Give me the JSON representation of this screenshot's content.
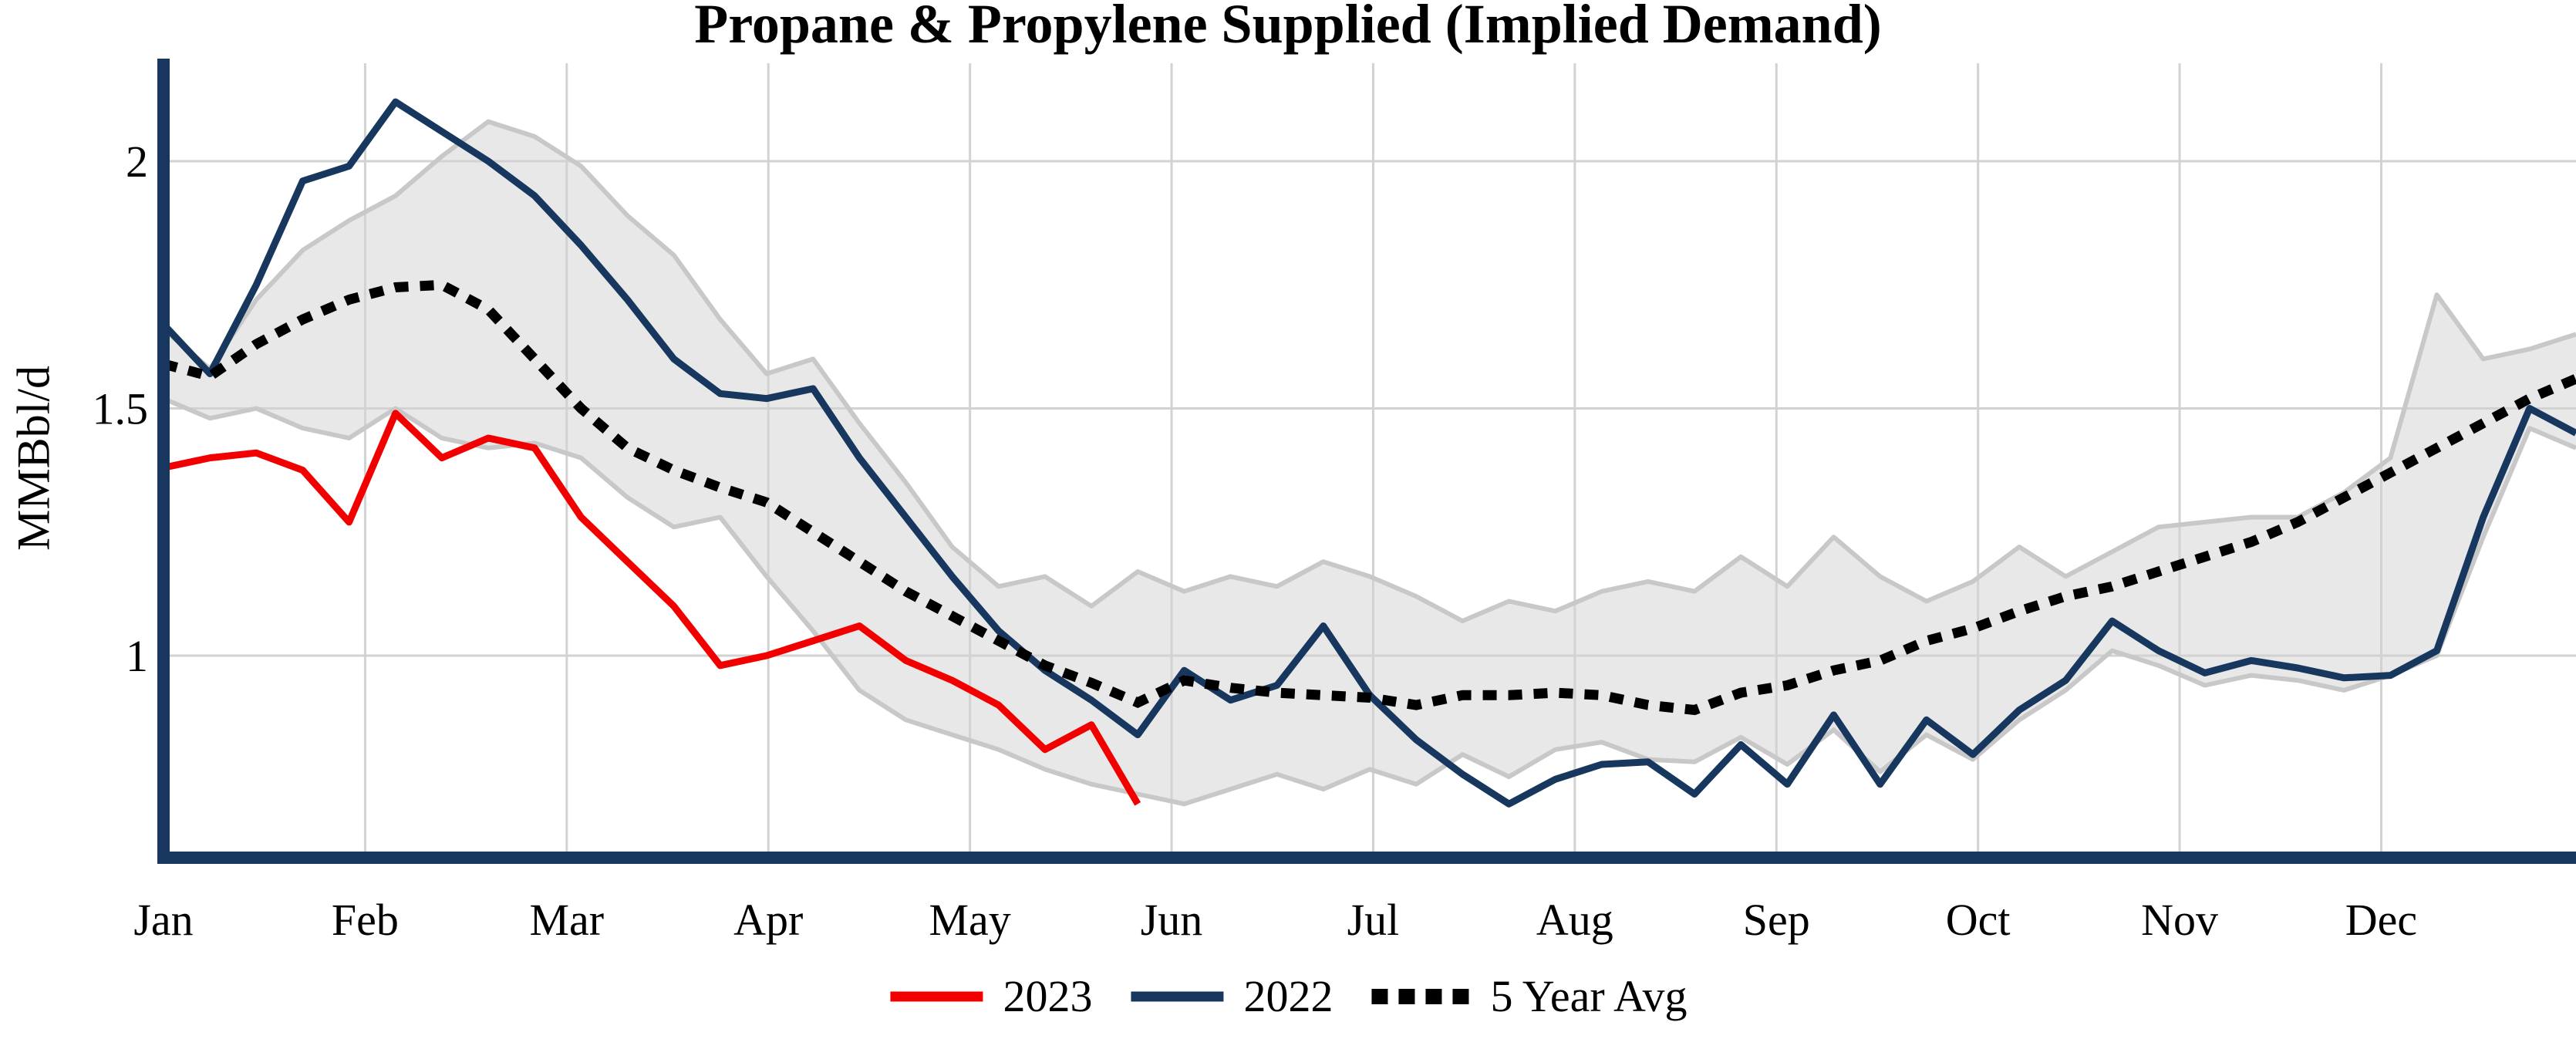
{
  "title": "Propane & Propylene Supplied (Implied Demand)",
  "y_axis": {
    "label": "MMBbl/d",
    "tick_labels": [
      "2",
      "1.5",
      "1"
    ],
    "tick_values": [
      2,
      1.5,
      1
    ]
  },
  "x_axis": {
    "months": [
      "Jan",
      "Feb",
      "Mar",
      "Apr",
      "May",
      "Jun",
      "Jul",
      "Aug",
      "Sep",
      "Oct",
      "Nov",
      "Dec"
    ]
  },
  "legend": [
    {
      "label": "2023",
      "color": "#F20000",
      "style": "solid"
    },
    {
      "label": "2022",
      "color": "#17375E",
      "style": "solid"
    },
    {
      "label": "5 Year Avg",
      "color": "#000000",
      "style": "dotted"
    }
  ],
  "colors": {
    "accent_navy": "#17375E",
    "accent_red": "#F20000",
    "dotted_black": "#000000",
    "band_fill": "#E8E8E8",
    "band_edge": "#C8C8C8",
    "gridline": "#D2D2D2",
    "axis_spine": "#17375E"
  },
  "chart_data": {
    "type": "line",
    "title": "Propane & Propylene Supplied (Implied Demand)",
    "xlabel": "",
    "ylabel": "MMBbl/d",
    "x_unit": "weekly",
    "weeks": 53,
    "x_categories": [
      "Jan",
      "Feb",
      "Mar",
      "Apr",
      "May",
      "Jun",
      "Jul",
      "Aug",
      "Sep",
      "Oct",
      "Nov",
      "Dec"
    ],
    "ylim": [
      0.6,
      2.2
    ],
    "grid": "on",
    "legend_position": "bottom",
    "series": [
      {
        "name": "2022",
        "color": "#17375E",
        "style": "solid",
        "values": [
          1.67,
          1.57,
          1.75,
          1.96,
          1.99,
          2.12,
          2.06,
          2.0,
          1.93,
          1.83,
          1.72,
          1.6,
          1.53,
          1.52,
          1.54,
          1.4,
          1.28,
          1.16,
          1.05,
          0.97,
          0.91,
          0.84,
          0.97,
          0.91,
          0.94,
          1.06,
          0.92,
          0.83,
          0.76,
          0.7,
          0.75,
          0.78,
          0.785,
          0.72,
          0.82,
          0.74,
          0.88,
          0.74,
          0.87,
          0.8,
          0.89,
          0.95,
          1.07,
          1.01,
          0.965,
          0.99,
          0.975,
          0.955,
          0.96,
          1.01,
          1.28,
          1.5,
          1.45
        ]
      },
      {
        "name": "2023",
        "color": "#F20000",
        "style": "solid",
        "values": [
          1.38,
          1.4,
          1.41,
          1.375,
          1.27,
          1.49,
          1.4,
          1.44,
          1.42,
          1.28,
          1.19,
          1.1,
          0.98,
          1.0,
          1.03,
          1.06,
          0.99,
          0.95,
          0.9,
          0.81,
          0.86,
          0.7
        ]
      },
      {
        "name": "5 Year Avg",
        "color": "#000000",
        "style": "dotted",
        "values": [
          1.59,
          1.565,
          1.63,
          1.68,
          1.72,
          1.745,
          1.75,
          1.7,
          1.6,
          1.5,
          1.42,
          1.375,
          1.34,
          1.31,
          1.25,
          1.19,
          1.13,
          1.08,
          1.03,
          0.98,
          0.945,
          0.905,
          0.95,
          0.935,
          0.925,
          0.92,
          0.915,
          0.9,
          0.92,
          0.92,
          0.925,
          0.92,
          0.9,
          0.89,
          0.925,
          0.94,
          0.97,
          0.99,
          1.03,
          1.055,
          1.09,
          1.12,
          1.14,
          1.17,
          1.2,
          1.23,
          1.27,
          1.32,
          1.37,
          1.42,
          1.47,
          1.52,
          1.56
        ]
      }
    ],
    "band": {
      "name": "5 Year Range",
      "fill": "#E8E8E8",
      "edge": "#C8C8C8",
      "top": [
        1.66,
        1.58,
        1.72,
        1.82,
        1.88,
        1.93,
        2.01,
        2.08,
        2.05,
        1.99,
        1.89,
        1.81,
        1.68,
        1.57,
        1.6,
        1.47,
        1.35,
        1.22,
        1.14,
        1.16,
        1.1,
        1.17,
        1.13,
        1.16,
        1.14,
        1.19,
        1.16,
        1.12,
        1.07,
        1.11,
        1.09,
        1.13,
        1.15,
        1.13,
        1.2,
        1.14,
        1.24,
        1.16,
        1.11,
        1.15,
        1.22,
        1.16,
        1.21,
        1.26,
        1.27,
        1.28,
        1.28,
        1.33,
        1.4,
        1.73,
        1.6,
        1.62,
        1.65
      ],
      "bottom": [
        1.52,
        1.48,
        1.5,
        1.46,
        1.44,
        1.5,
        1.44,
        1.42,
        1.43,
        1.4,
        1.32,
        1.26,
        1.28,
        1.16,
        1.05,
        0.93,
        0.87,
        0.84,
        0.81,
        0.77,
        0.74,
        0.72,
        0.7,
        0.73,
        0.76,
        0.73,
        0.77,
        0.74,
        0.8,
        0.755,
        0.81,
        0.825,
        0.79,
        0.785,
        0.835,
        0.78,
        0.85,
        0.765,
        0.84,
        0.79,
        0.87,
        0.93,
        1.01,
        0.98,
        0.94,
        0.96,
        0.95,
        0.93,
        0.96,
        1.0,
        1.24,
        1.46,
        1.42
      ]
    }
  }
}
